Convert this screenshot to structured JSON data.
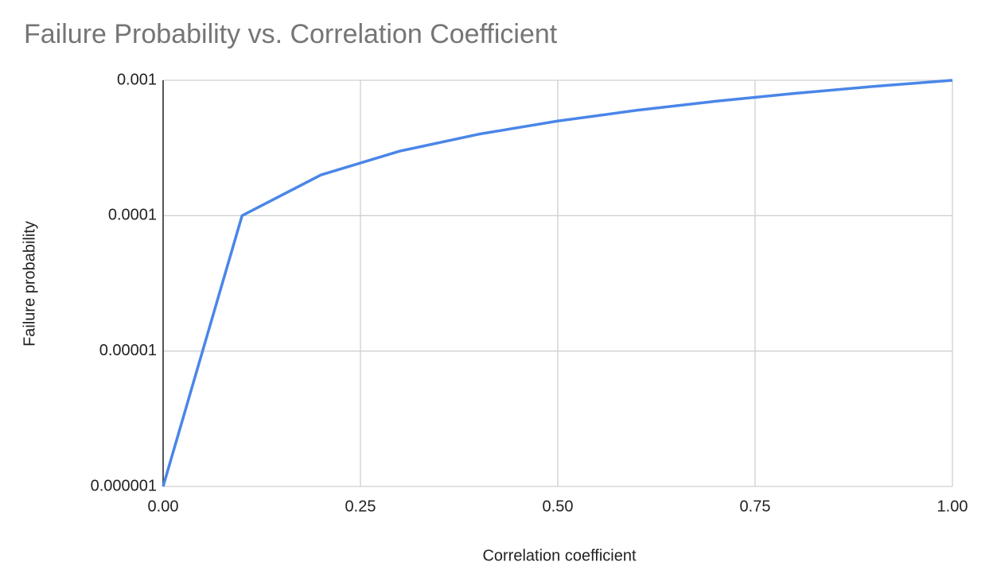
{
  "chart_data": {
    "type": "line",
    "title": "Failure Probability vs. Correlation Coefficient",
    "xlabel": "Correlation coefficient",
    "ylabel": "Failure probability",
    "x": [
      0,
      0.1,
      0.2,
      0.3,
      0.4,
      0.5,
      0.6,
      0.7,
      0.8,
      0.9,
      1.0
    ],
    "series": [
      {
        "name": "Failure probability",
        "color": "#4a86e8",
        "values": [
          1e-06,
          0.0001,
          0.0002,
          0.0003,
          0.0004,
          0.0005,
          0.0006,
          0.0007,
          0.0008,
          0.0009,
          0.001
        ]
      }
    ],
    "xlim": [
      0,
      1
    ],
    "xticks": [
      {
        "value": 0,
        "label": "0.00"
      },
      {
        "value": 0.25,
        "label": "0.25"
      },
      {
        "value": 0.5,
        "label": "0.50"
      },
      {
        "value": 0.75,
        "label": "0.75"
      },
      {
        "value": 1,
        "label": "1.00"
      }
    ],
    "ylim": [
      1e-06,
      0.001
    ],
    "yticks": [
      1e-06,
      1e-05,
      0.0001,
      0.001
    ],
    "yscale": "log",
    "grid": true
  }
}
